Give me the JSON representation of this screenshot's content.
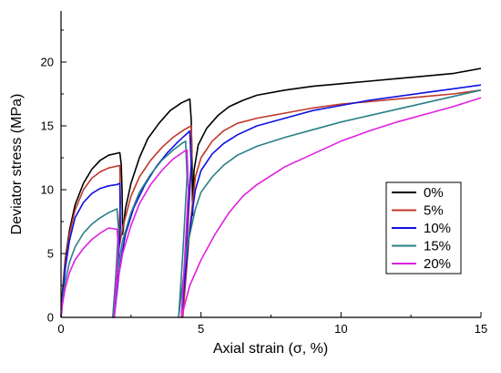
{
  "chart_data": {
    "type": "line",
    "title": "",
    "xlabel": "Axial strain (σ, %)",
    "ylabel": "Deviator stress (MPa)",
    "xlim": [
      0,
      15
    ],
    "ylim": [
      0,
      24
    ],
    "x_ticks": [
      0,
      5,
      10,
      15
    ],
    "x_tick_labels": [
      "0",
      "5",
      "10",
      "15"
    ],
    "y_ticks": [
      0,
      5,
      10,
      15,
      20
    ],
    "y_tick_labels": [
      "0",
      "5",
      "10",
      "15",
      "20"
    ],
    "grid": false,
    "legend_position": "right",
    "series": [
      {
        "name": "0%",
        "color": "#000000",
        "points": [
          [
            0.0,
            0.0
          ],
          [
            0.05,
            2.0
          ],
          [
            0.15,
            4.5
          ],
          [
            0.3,
            6.8
          ],
          [
            0.5,
            8.8
          ],
          [
            0.8,
            10.5
          ],
          [
            1.1,
            11.6
          ],
          [
            1.4,
            12.3
          ],
          [
            1.7,
            12.7
          ],
          [
            2.1,
            12.9
          ],
          [
            2.15,
            12.0
          ],
          [
            2.18,
            10.0
          ],
          [
            2.2,
            6.5
          ],
          [
            2.3,
            8.5
          ],
          [
            2.5,
            10.5
          ],
          [
            2.8,
            12.5
          ],
          [
            3.1,
            14.0
          ],
          [
            3.5,
            15.2
          ],
          [
            3.9,
            16.2
          ],
          [
            4.3,
            16.8
          ],
          [
            4.6,
            17.1
          ],
          [
            4.65,
            15.5
          ],
          [
            4.68,
            12.0
          ],
          [
            4.7,
            8.0
          ],
          [
            4.75,
            11.5
          ],
          [
            4.9,
            13.5
          ],
          [
            5.2,
            14.8
          ],
          [
            5.6,
            15.8
          ],
          [
            6.0,
            16.5
          ],
          [
            6.5,
            17.0
          ],
          [
            7.0,
            17.4
          ],
          [
            8.0,
            17.8
          ],
          [
            9.0,
            18.1
          ],
          [
            10.0,
            18.3
          ],
          [
            11.0,
            18.5
          ],
          [
            12.0,
            18.7
          ],
          [
            13.0,
            18.9
          ],
          [
            14.0,
            19.1
          ],
          [
            15.0,
            19.5
          ]
        ]
      },
      {
        "name": "5%",
        "color": "#c0392b",
        "points": [
          [
            0.0,
            0.0
          ],
          [
            0.05,
            1.8
          ],
          [
            0.15,
            4.2
          ],
          [
            0.3,
            6.5
          ],
          [
            0.5,
            8.4
          ],
          [
            0.8,
            10.0
          ],
          [
            1.1,
            10.9
          ],
          [
            1.4,
            11.4
          ],
          [
            1.7,
            11.7
          ],
          [
            2.1,
            11.9
          ],
          [
            2.12,
            9.0
          ],
          [
            2.0,
            4.0
          ],
          [
            1.85,
            0.0
          ],
          [
            2.0,
            4.5
          ],
          [
            2.2,
            7.0
          ],
          [
            2.5,
            9.5
          ],
          [
            2.8,
            11.0
          ],
          [
            3.2,
            12.3
          ],
          [
            3.6,
            13.3
          ],
          [
            4.0,
            14.1
          ],
          [
            4.4,
            14.7
          ],
          [
            4.65,
            15.0
          ],
          [
            4.68,
            13.0
          ],
          [
            4.5,
            6.0
          ],
          [
            4.35,
            0.0
          ],
          [
            4.6,
            7.0
          ],
          [
            4.8,
            11.0
          ],
          [
            5.0,
            12.5
          ],
          [
            5.4,
            13.8
          ],
          [
            5.8,
            14.6
          ],
          [
            6.3,
            15.2
          ],
          [
            7.0,
            15.6
          ],
          [
            8.0,
            16.0
          ],
          [
            9.0,
            16.4
          ],
          [
            10.0,
            16.7
          ],
          [
            11.0,
            16.9
          ],
          [
            12.0,
            17.1
          ],
          [
            13.0,
            17.3
          ],
          [
            14.0,
            17.5
          ],
          [
            15.0,
            17.8
          ]
        ]
      },
      {
        "name": "10%",
        "color": "#1010e0",
        "points": [
          [
            0.0,
            0.0
          ],
          [
            0.05,
            1.5
          ],
          [
            0.15,
            3.8
          ],
          [
            0.3,
            6.0
          ],
          [
            0.5,
            7.8
          ],
          [
            0.8,
            9.0
          ],
          [
            1.1,
            9.7
          ],
          [
            1.4,
            10.1
          ],
          [
            1.7,
            10.3
          ],
          [
            2.0,
            10.4
          ],
          [
            2.1,
            10.5
          ],
          [
            2.12,
            7.0
          ],
          [
            2.0,
            3.0
          ],
          [
            1.9,
            0.0
          ],
          [
            2.1,
            4.0
          ],
          [
            2.3,
            6.5
          ],
          [
            2.6,
            8.6
          ],
          [
            3.0,
            10.4
          ],
          [
            3.4,
            11.8
          ],
          [
            3.8,
            12.9
          ],
          [
            4.2,
            13.8
          ],
          [
            4.6,
            14.6
          ],
          [
            4.65,
            12.0
          ],
          [
            4.45,
            5.0
          ],
          [
            4.3,
            0.0
          ],
          [
            4.55,
            6.0
          ],
          [
            4.8,
            10.0
          ],
          [
            5.0,
            11.5
          ],
          [
            5.4,
            12.8
          ],
          [
            5.8,
            13.6
          ],
          [
            6.3,
            14.3
          ],
          [
            7.0,
            15.0
          ],
          [
            8.0,
            15.6
          ],
          [
            9.0,
            16.2
          ],
          [
            10.0,
            16.6
          ],
          [
            11.0,
            17.0
          ],
          [
            12.0,
            17.3
          ],
          [
            13.0,
            17.6
          ],
          [
            14.0,
            17.9
          ],
          [
            15.0,
            18.2
          ]
        ]
      },
      {
        "name": "15%",
        "color": "#2a7f87",
        "points": [
          [
            0.0,
            0.0
          ],
          [
            0.05,
            1.2
          ],
          [
            0.15,
            2.8
          ],
          [
            0.3,
            4.3
          ],
          [
            0.5,
            5.5
          ],
          [
            0.8,
            6.6
          ],
          [
            1.1,
            7.3
          ],
          [
            1.4,
            7.8
          ],
          [
            1.7,
            8.2
          ],
          [
            2.0,
            8.5
          ],
          [
            2.05,
            7.0
          ],
          [
            1.95,
            3.0
          ],
          [
            1.85,
            0.0
          ],
          [
            2.0,
            3.5
          ],
          [
            2.2,
            6.0
          ],
          [
            2.5,
            8.2
          ],
          [
            2.8,
            9.8
          ],
          [
            3.2,
            11.2
          ],
          [
            3.6,
            12.3
          ],
          [
            4.0,
            13.1
          ],
          [
            4.3,
            13.6
          ],
          [
            4.45,
            13.8
          ],
          [
            4.5,
            11.0
          ],
          [
            4.35,
            5.0
          ],
          [
            4.2,
            0.0
          ],
          [
            4.5,
            5.5
          ],
          [
            4.8,
            8.5
          ],
          [
            5.0,
            9.8
          ],
          [
            5.4,
            11.0
          ],
          [
            5.8,
            11.9
          ],
          [
            6.3,
            12.7
          ],
          [
            7.0,
            13.4
          ],
          [
            8.0,
            14.1
          ],
          [
            9.0,
            14.7
          ],
          [
            10.0,
            15.3
          ],
          [
            11.0,
            15.8
          ],
          [
            12.0,
            16.3
          ],
          [
            13.0,
            16.8
          ],
          [
            14.0,
            17.3
          ],
          [
            15.0,
            17.8
          ]
        ]
      },
      {
        "name": "20%",
        "color": "#e020e0",
        "points": [
          [
            0.0,
            0.0
          ],
          [
            0.05,
            1.0
          ],
          [
            0.15,
            2.3
          ],
          [
            0.3,
            3.5
          ],
          [
            0.5,
            4.5
          ],
          [
            0.8,
            5.4
          ],
          [
            1.1,
            6.1
          ],
          [
            1.4,
            6.6
          ],
          [
            1.7,
            7.0
          ],
          [
            2.0,
            6.9
          ],
          [
            2.05,
            5.5
          ],
          [
            1.95,
            2.0
          ],
          [
            1.9,
            0.0
          ],
          [
            2.0,
            2.5
          ],
          [
            2.2,
            5.0
          ],
          [
            2.5,
            7.2
          ],
          [
            2.8,
            8.9
          ],
          [
            3.2,
            10.4
          ],
          [
            3.6,
            11.5
          ],
          [
            4.0,
            12.4
          ],
          [
            4.4,
            13.0
          ],
          [
            4.5,
            13.1
          ],
          [
            4.55,
            10.0
          ],
          [
            4.4,
            4.0
          ],
          [
            4.3,
            0.0
          ],
          [
            4.6,
            2.5
          ],
          [
            5.0,
            4.5
          ],
          [
            5.5,
            6.5
          ],
          [
            6.0,
            8.2
          ],
          [
            6.5,
            9.5
          ],
          [
            7.0,
            10.4
          ],
          [
            8.0,
            11.8
          ],
          [
            9.0,
            12.8
          ],
          [
            10.0,
            13.8
          ],
          [
            11.0,
            14.6
          ],
          [
            12.0,
            15.3
          ],
          [
            13.0,
            15.9
          ],
          [
            14.0,
            16.5
          ],
          [
            15.0,
            17.2
          ]
        ]
      }
    ]
  }
}
